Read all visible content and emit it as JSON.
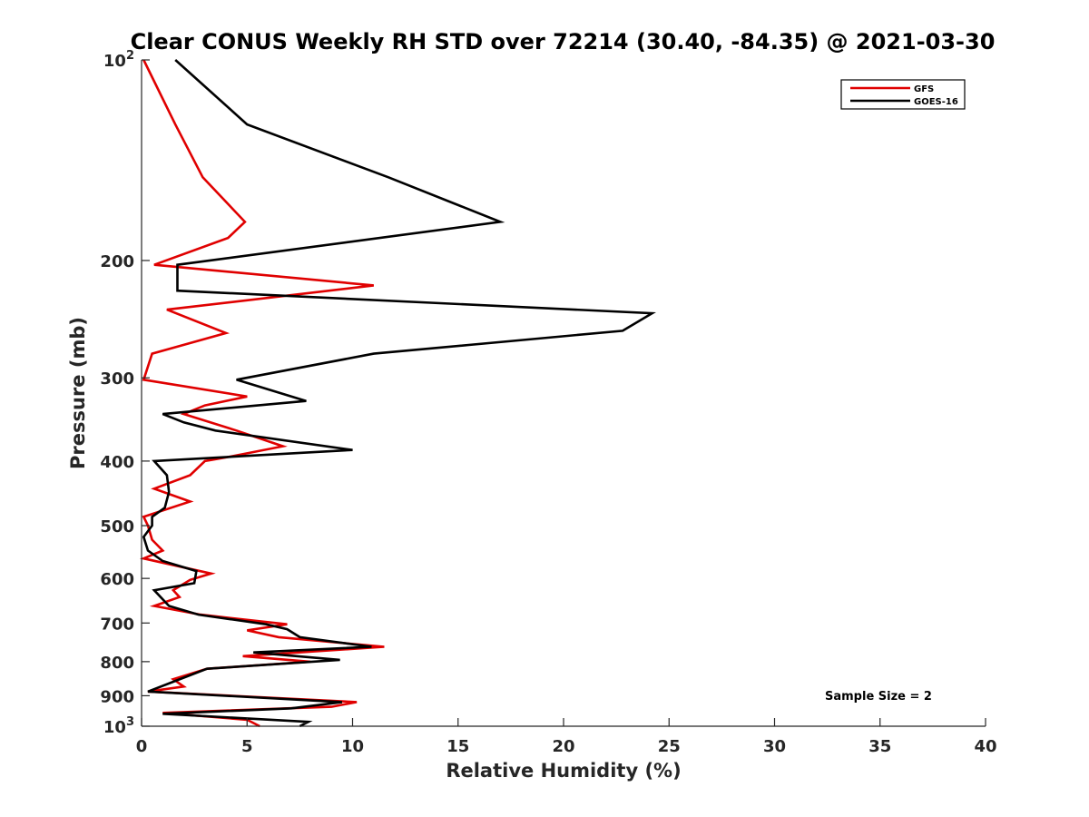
{
  "chart_data": {
    "type": "line",
    "title": "Clear CONUS Weekly RH STD over 72214 (30.40, -84.35) @ 2021-03-30",
    "xlabel": "Relative Humidity (%)",
    "ylabel": "Pressure (mb)",
    "xlim": [
      0,
      40
    ],
    "ylim": [
      100,
      1000
    ],
    "yscale": "log",
    "yreversed": true,
    "grid": false,
    "legend_position": "top-right",
    "x_ticks": [
      {
        "value": 0,
        "label": "0"
      },
      {
        "value": 5,
        "label": "5"
      },
      {
        "value": 10,
        "label": "10"
      },
      {
        "value": 15,
        "label": "15"
      },
      {
        "value": 20,
        "label": "20"
      },
      {
        "value": 25,
        "label": "25"
      },
      {
        "value": 30,
        "label": "30"
      },
      {
        "value": 35,
        "label": "35"
      },
      {
        "value": 40,
        "label": "40"
      }
    ],
    "y_ticks": [
      {
        "value": 100,
        "label": "10",
        "sup": "2"
      },
      {
        "value": 200,
        "label": "200",
        "sup": ""
      },
      {
        "value": 300,
        "label": "300",
        "sup": ""
      },
      {
        "value": 400,
        "label": "400",
        "sup": ""
      },
      {
        "value": 500,
        "label": "500",
        "sup": ""
      },
      {
        "value": 600,
        "label": "600",
        "sup": ""
      },
      {
        "value": 700,
        "label": "700",
        "sup": ""
      },
      {
        "value": 800,
        "label": "800",
        "sup": ""
      },
      {
        "value": 900,
        "label": "900",
        "sup": ""
      },
      {
        "value": 1000,
        "label": "10",
        "sup": "3"
      }
    ],
    "annotation": "Sample Size = 2",
    "series": [
      {
        "name": "GFS",
        "color": "#e00000",
        "points": [
          [
            0.1,
            100
          ],
          [
            1.6,
            125
          ],
          [
            2.9,
            150
          ],
          [
            4.9,
            175
          ],
          [
            4.1,
            185
          ],
          [
            0.6,
            203
          ],
          [
            11.0,
            218
          ],
          [
            1.2,
            237
          ],
          [
            4.0,
            257
          ],
          [
            0.5,
            276
          ],
          [
            0.1,
            302
          ],
          [
            5.0,
            320
          ],
          [
            3.0,
            330
          ],
          [
            2.0,
            340
          ],
          [
            4.5,
            360
          ],
          [
            6.7,
            380
          ],
          [
            4.0,
            395
          ],
          [
            3.0,
            400
          ],
          [
            2.3,
            420
          ],
          [
            0.6,
            440
          ],
          [
            2.3,
            460
          ],
          [
            0.1,
            485
          ],
          [
            0.3,
            500
          ],
          [
            0.5,
            525
          ],
          [
            1.0,
            545
          ],
          [
            0.1,
            560
          ],
          [
            3.3,
            590
          ],
          [
            2.3,
            603
          ],
          [
            1.5,
            625
          ],
          [
            1.8,
            640
          ],
          [
            0.6,
            660
          ],
          [
            2.8,
            680
          ],
          [
            6.9,
            703
          ],
          [
            5.0,
            718
          ],
          [
            6.5,
            735
          ],
          [
            11.5,
            760
          ],
          [
            4.8,
            785
          ],
          [
            8.0,
            800
          ],
          [
            3.1,
            820
          ],
          [
            1.5,
            850
          ],
          [
            2.0,
            872
          ],
          [
            0.3,
            887
          ],
          [
            10.2,
            920
          ],
          [
            9.0,
            935
          ],
          [
            1.0,
            955
          ],
          [
            5.0,
            978
          ],
          [
            5.6,
            1000
          ]
        ]
      },
      {
        "name": "GOES-16",
        "color": "#000000",
        "points": [
          [
            1.6,
            100
          ],
          [
            5.0,
            125
          ],
          [
            11.7,
            150
          ],
          [
            17.0,
            175
          ],
          [
            1.7,
            203
          ],
          [
            1.7,
            222
          ],
          [
            24.2,
            240
          ],
          [
            22.8,
            255
          ],
          [
            11.0,
            276
          ],
          [
            4.5,
            302
          ],
          [
            7.8,
            325
          ],
          [
            1.0,
            340
          ],
          [
            2.0,
            350
          ],
          [
            3.5,
            360
          ],
          [
            10.0,
            385
          ],
          [
            0.6,
            400
          ],
          [
            1.2,
            420
          ],
          [
            1.3,
            445
          ],
          [
            1.1,
            470
          ],
          [
            0.5,
            485
          ],
          [
            0.5,
            500
          ],
          [
            0.1,
            520
          ],
          [
            0.3,
            545
          ],
          [
            1.0,
            565
          ],
          [
            2.6,
            585
          ],
          [
            2.5,
            610
          ],
          [
            0.6,
            625
          ],
          [
            1.3,
            660
          ],
          [
            2.7,
            680
          ],
          [
            5.9,
            703
          ],
          [
            6.9,
            715
          ],
          [
            7.5,
            735
          ],
          [
            10.9,
            760
          ],
          [
            5.3,
            775
          ],
          [
            9.4,
            795
          ],
          [
            3.1,
            820
          ],
          [
            1.6,
            855
          ],
          [
            0.3,
            887
          ],
          [
            9.5,
            920
          ],
          [
            7.1,
            940
          ],
          [
            1.0,
            958
          ],
          [
            7.9,
            985
          ],
          [
            7.5,
            1000
          ]
        ]
      }
    ]
  }
}
